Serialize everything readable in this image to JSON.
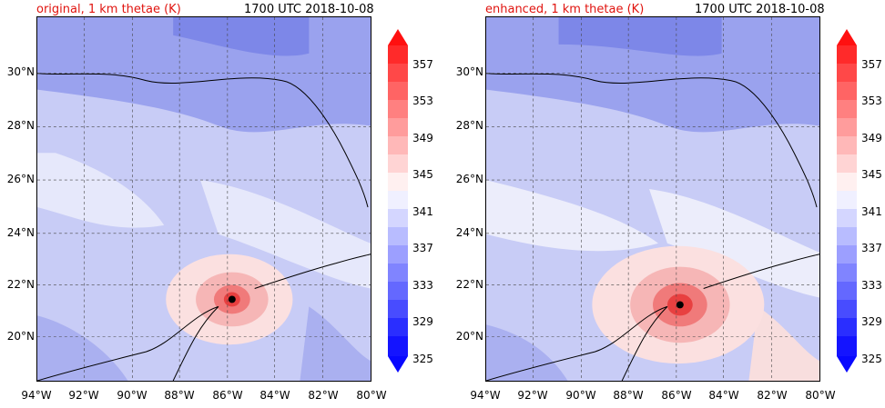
{
  "panels": [
    {
      "title": "original, 1 km thetae (K)",
      "time": "1700 UTC 2018-10-08",
      "storm_center": {
        "lon": -85.8,
        "lat": 21.4
      }
    },
    {
      "title": "enhanced, 1 km thetae (K)",
      "time": "1700 UTC 2018-10-08",
      "storm_center": {
        "lon": -85.8,
        "lat": 21.2
      }
    }
  ],
  "lat_labels": [
    "30°N",
    "28°N",
    "26°N",
    "24°N",
    "22°N",
    "20°N"
  ],
  "lon_labels": [
    "94°W",
    "92°W",
    "90°W",
    "88°W",
    "86°W",
    "84°W",
    "82°W",
    "80°W"
  ],
  "colorbar": {
    "labels": [
      "357",
      "353",
      "349",
      "345",
      "341",
      "337",
      "333",
      "329",
      "325"
    ],
    "low_color": "#1010ff",
    "mid_color": "#ffffff",
    "high_color": "#ff1010"
  }
}
